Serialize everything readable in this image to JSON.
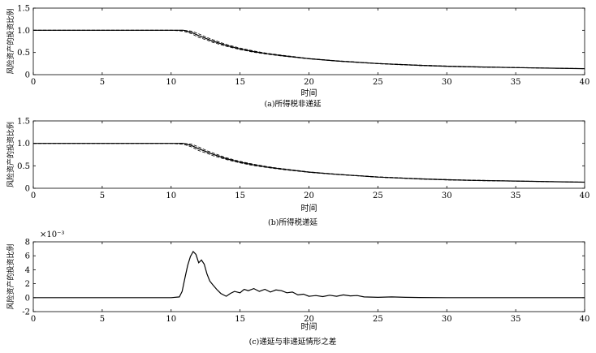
{
  "chart_data": [
    {
      "type": "line",
      "caption": "(a)所得税非递延",
      "xlabel": "时间",
      "ylabel": "风险资产的投资比例",
      "xlim": [
        0,
        40
      ],
      "ylim": [
        0,
        1.5
      ],
      "xticks": [
        0,
        5,
        10,
        15,
        20,
        25,
        30,
        35,
        40
      ],
      "yticks": [
        "0",
        "0.5",
        "1.0",
        "1.5"
      ],
      "ytick_values": [
        0,
        0.5,
        1.0,
        1.5
      ],
      "grid": false,
      "series": [
        {
          "style": "solid",
          "x": [
            0,
            10,
            10.9,
            11.5,
            12,
            12.5,
            13,
            14,
            15,
            16,
            17,
            18,
            20,
            22,
            25,
            28,
            30,
            32,
            35,
            38,
            40
          ],
          "y": [
            1.0,
            1.0,
            1.0,
            0.95,
            0.88,
            0.82,
            0.76,
            0.66,
            0.58,
            0.52,
            0.47,
            0.43,
            0.36,
            0.31,
            0.25,
            0.21,
            0.19,
            0.175,
            0.16,
            0.145,
            0.135
          ]
        },
        {
          "style": "dashed",
          "x": [
            0,
            10,
            10.9,
            11.5,
            12,
            12.5,
            13,
            14,
            15,
            16,
            17,
            18,
            20,
            22,
            25,
            28,
            30,
            32,
            35,
            38,
            40
          ],
          "y": [
            1.0,
            1.0,
            1.0,
            0.98,
            0.92,
            0.85,
            0.79,
            0.68,
            0.6,
            0.535,
            0.48,
            0.44,
            0.365,
            0.315,
            0.255,
            0.215,
            0.195,
            0.18,
            0.162,
            0.147,
            0.137
          ]
        },
        {
          "style": "dashed",
          "x": [
            0,
            10,
            10.9,
            11.5,
            12,
            12.5,
            13,
            14,
            15,
            16,
            17,
            18,
            20,
            22,
            25,
            28,
            30,
            32,
            35,
            38,
            40
          ],
          "y": [
            1.0,
            1.0,
            0.98,
            0.92,
            0.84,
            0.79,
            0.73,
            0.64,
            0.565,
            0.505,
            0.46,
            0.42,
            0.355,
            0.305,
            0.245,
            0.205,
            0.185,
            0.17,
            0.158,
            0.143,
            0.133
          ]
        }
      ]
    },
    {
      "type": "line",
      "caption": "(b)所得税递延",
      "xlabel": "时间",
      "ylabel": "风险资产的投资比例",
      "xlim": [
        0,
        40
      ],
      "ylim": [
        0,
        1.5
      ],
      "xticks": [
        0,
        5,
        10,
        15,
        20,
        25,
        30,
        35,
        40
      ],
      "yticks": [
        "0",
        "0.5",
        "1.0",
        "1.5"
      ],
      "ytick_values": [
        0,
        0.5,
        1.0,
        1.5
      ],
      "grid": false,
      "series": [
        {
          "style": "solid",
          "x": [
            0,
            10,
            10.9,
            11.5,
            12,
            12.5,
            13,
            14,
            15,
            16,
            17,
            18,
            20,
            22,
            25,
            28,
            30,
            32,
            35,
            38,
            40
          ],
          "y": [
            1.0,
            1.0,
            1.0,
            0.95,
            0.88,
            0.82,
            0.76,
            0.66,
            0.58,
            0.52,
            0.47,
            0.43,
            0.36,
            0.31,
            0.25,
            0.21,
            0.19,
            0.175,
            0.16,
            0.145,
            0.135
          ]
        },
        {
          "style": "dashed",
          "x": [
            0,
            10,
            10.9,
            11.5,
            12,
            12.5,
            13,
            14,
            15,
            16,
            17,
            18,
            20,
            22,
            25,
            28,
            30,
            32,
            35,
            38,
            40
          ],
          "y": [
            1.0,
            1.0,
            1.0,
            0.98,
            0.92,
            0.85,
            0.79,
            0.68,
            0.6,
            0.535,
            0.48,
            0.44,
            0.365,
            0.315,
            0.255,
            0.215,
            0.195,
            0.18,
            0.162,
            0.147,
            0.137
          ]
        },
        {
          "style": "dashed",
          "x": [
            0,
            10,
            10.9,
            11.5,
            12,
            12.5,
            13,
            14,
            15,
            16,
            17,
            18,
            20,
            22,
            25,
            28,
            30,
            32,
            35,
            38,
            40
          ],
          "y": [
            1.0,
            1.0,
            0.98,
            0.92,
            0.84,
            0.79,
            0.73,
            0.64,
            0.565,
            0.505,
            0.46,
            0.42,
            0.355,
            0.305,
            0.245,
            0.205,
            0.185,
            0.17,
            0.158,
            0.143,
            0.133
          ]
        }
      ]
    },
    {
      "type": "line",
      "caption": "(c)递延与非递延情形之差",
      "xlabel": "时间",
      "ylabel": "风险资产的投资比例",
      "scale_label": "×10⁻³",
      "xlim": [
        0,
        40
      ],
      "ylim": [
        -2,
        8
      ],
      "xticks": [
        0,
        5,
        10,
        15,
        20,
        25,
        30,
        35,
        40
      ],
      "yticks": [
        "-2",
        "0",
        "2",
        "4",
        "6",
        "8"
      ],
      "ytick_values": [
        -2,
        0,
        2,
        4,
        6,
        8
      ],
      "grid": false,
      "series": [
        {
          "style": "solid",
          "x": [
            0,
            10,
            10.6,
            10.8,
            11.0,
            11.2,
            11.4,
            11.6,
            11.8,
            12.0,
            12.2,
            12.4,
            12.6,
            12.8,
            13.0,
            13.3,
            13.6,
            14.0,
            14.3,
            14.6,
            15.0,
            15.3,
            15.6,
            16.0,
            16.4,
            16.8,
            17.2,
            17.6,
            18.0,
            18.4,
            18.8,
            19.2,
            19.6,
            20.0,
            20.5,
            21.0,
            21.5,
            22.0,
            22.5,
            23.0,
            23.5,
            24.0,
            25.0,
            26.0,
            27.0,
            28.0,
            30.0,
            32.0,
            35.0,
            38.0,
            40.0
          ],
          "y": [
            0,
            0,
            0.1,
            0.9,
            2.8,
            4.6,
            5.9,
            6.6,
            6.2,
            5.0,
            5.4,
            4.8,
            3.4,
            2.4,
            1.9,
            1.2,
            0.6,
            0.2,
            0.6,
            0.9,
            0.7,
            1.2,
            1.0,
            1.3,
            0.9,
            1.2,
            0.8,
            1.1,
            1.0,
            0.7,
            0.8,
            0.4,
            0.5,
            0.2,
            0.3,
            0.15,
            0.35,
            0.2,
            0.4,
            0.25,
            0.3,
            0.1,
            0.05,
            0.1,
            0.05,
            0.02,
            0.0,
            0.0,
            0.0,
            0.0,
            0.0
          ]
        }
      ]
    }
  ]
}
